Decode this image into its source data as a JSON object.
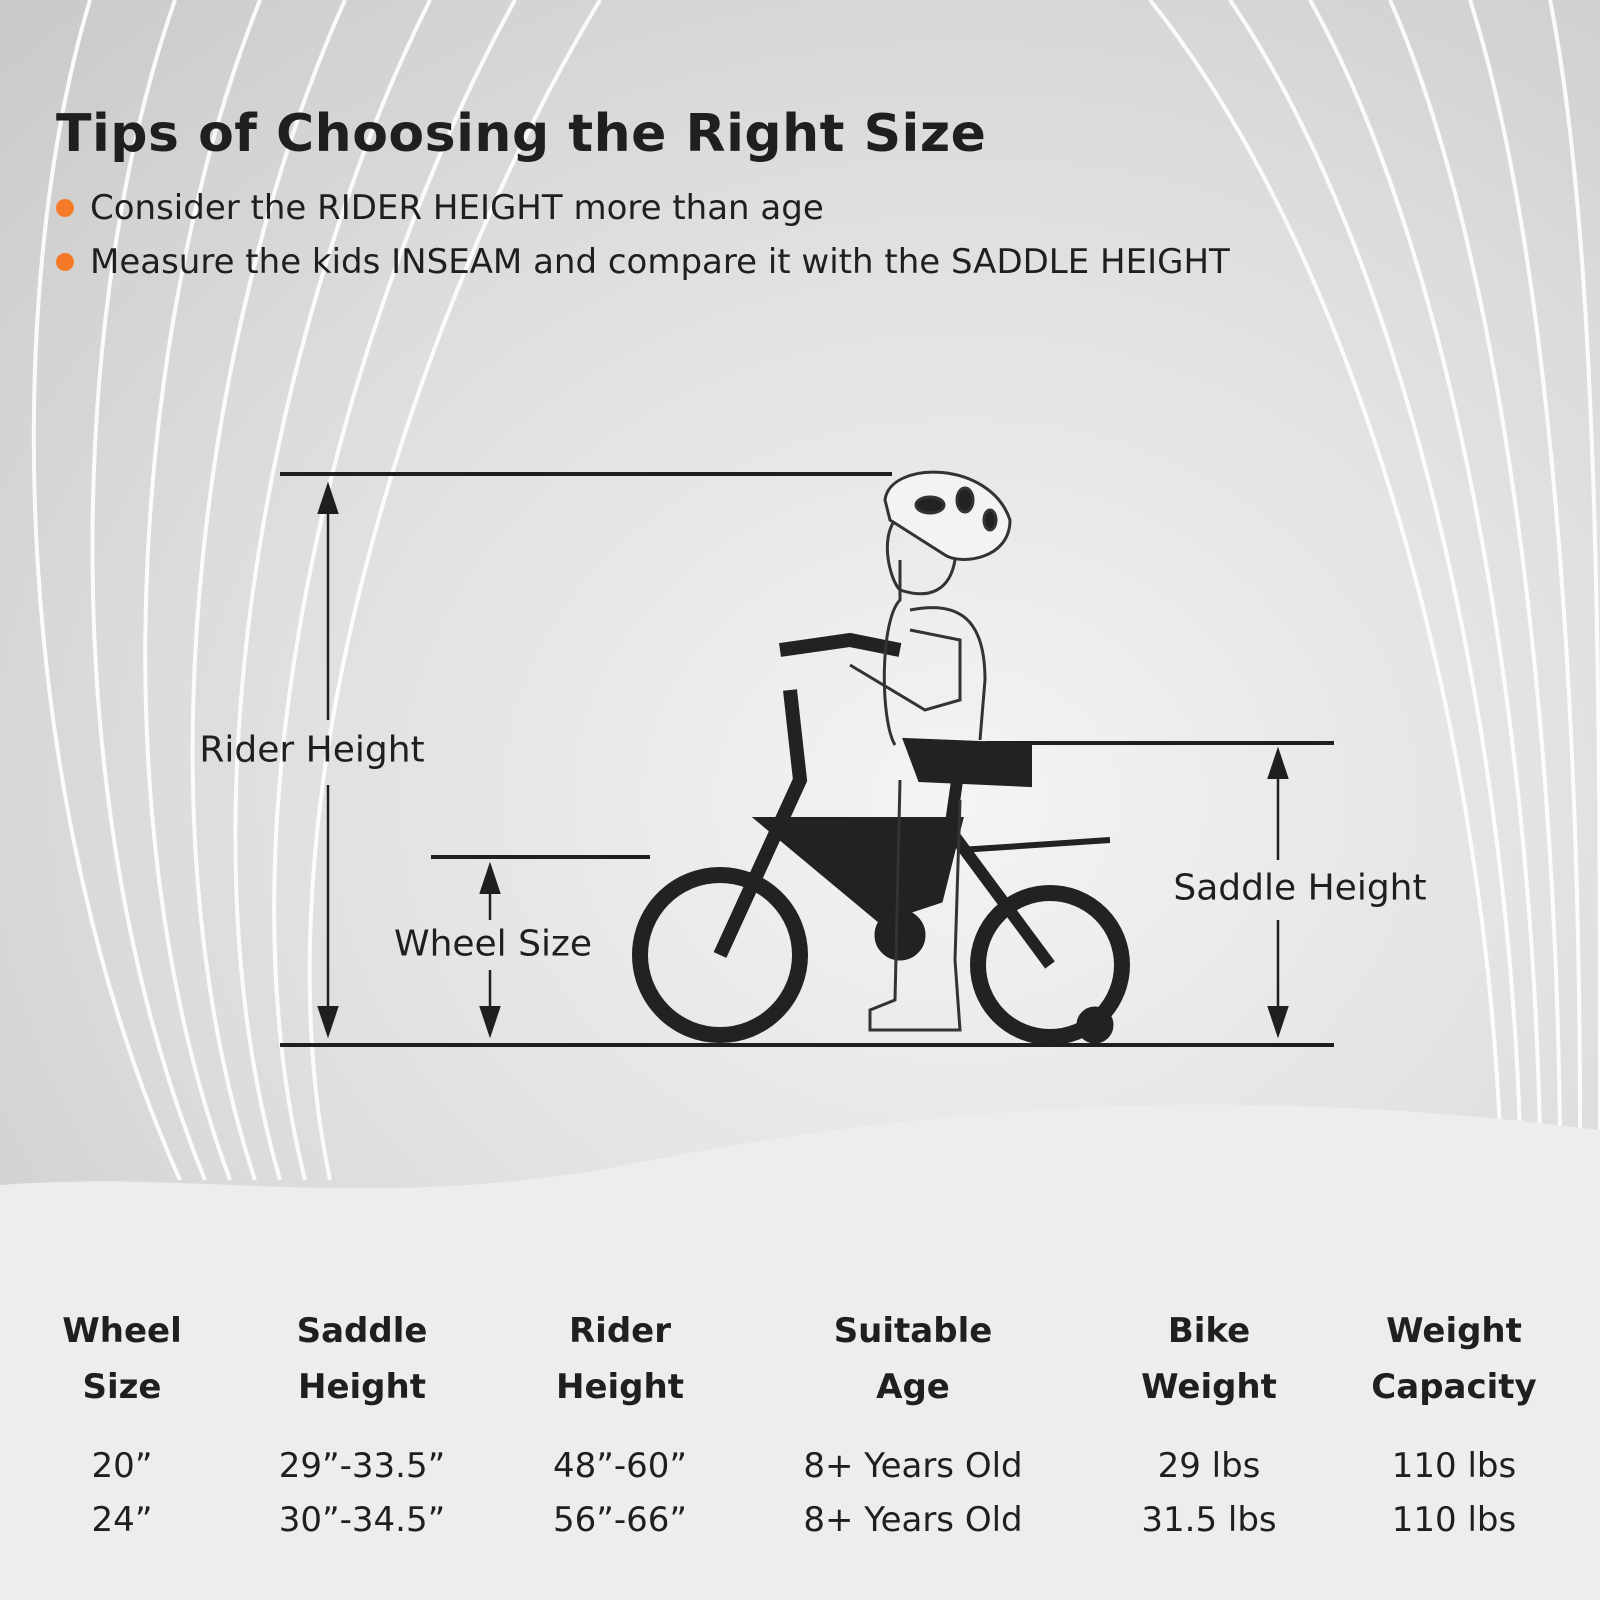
{
  "title": "Tips of Choosing the Right Size",
  "accent_color": "#f47a2a",
  "bullets": [
    "Consider the RIDER HEIGHT more than age",
    "Measure the kids INSEAM and compare it with the SADDLE HEIGHT"
  ],
  "diagram": {
    "rider_height": "Rider Height",
    "wheel_size": "Wheel Size",
    "saddle_height": "Saddle Height"
  },
  "table": {
    "headers": [
      [
        "Wheel",
        "Size"
      ],
      [
        "Saddle",
        "Height"
      ],
      [
        "Rider",
        "Height"
      ],
      [
        "Suitable",
        "Age"
      ],
      [
        "Bike",
        "Weight"
      ],
      [
        "Weight",
        "Capacity"
      ]
    ],
    "rows": [
      [
        "20”",
        "29”-33.5”",
        "48”-60”",
        "8+ Years Old",
        "29 lbs",
        "110 lbs"
      ],
      [
        "24”",
        "30”-34.5”",
        "56”-66”",
        "8+ Years Old",
        "31.5 lbs",
        "110 lbs"
      ]
    ]
  }
}
